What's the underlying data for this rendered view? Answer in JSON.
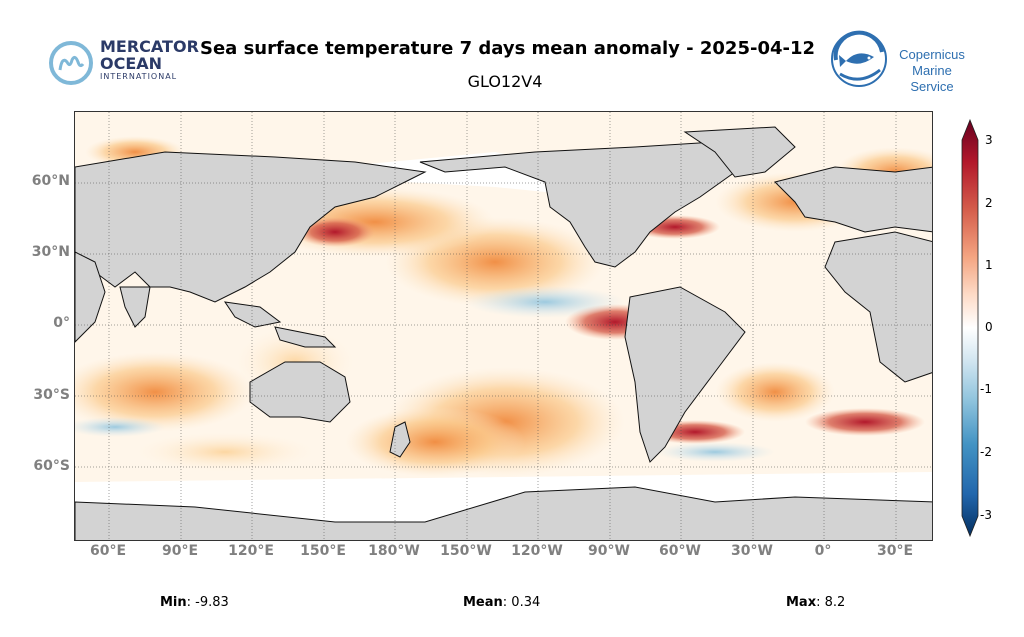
{
  "title": "Sea surface temperature 7 days mean anomaly - 2025-04-12",
  "subtitle": "GLO12V4",
  "logos": {
    "left_line1": "MERCATOR",
    "left_line2": "OCEAN",
    "left_line3": "INTERNATIONAL",
    "right_line1": "Copernicus",
    "right_line2": "Marine Service"
  },
  "map": {
    "lat_ticks": [
      "60°N",
      "30°N",
      "0°",
      "30°S",
      "60°S"
    ],
    "lon_ticks": [
      "60°E",
      "90°E",
      "120°E",
      "150°E",
      "180°W",
      "150°W",
      "120°W",
      "90°W",
      "60°W",
      "30°W",
      "0°",
      "30°E"
    ],
    "land_color": "#d3d3d3",
    "ocean_neutral": "#ffffff"
  },
  "colorbar": {
    "ticks": [
      "3",
      "2",
      "1",
      "0",
      "-1",
      "-2",
      "-3"
    ],
    "colors": [
      "#67001f",
      "#b2182b",
      "#d6604d",
      "#f4a582",
      "#fddbc7",
      "#ffffff",
      "#d1e5f0",
      "#92c5de",
      "#4393c3",
      "#2166ac",
      "#053061"
    ]
  },
  "stats": {
    "min_label": "Min",
    "min_value": ": -9.83",
    "mean_label": "Mean",
    "mean_value": ": 0.34",
    "max_label": "Max",
    "max_value": ": 8.2"
  }
}
